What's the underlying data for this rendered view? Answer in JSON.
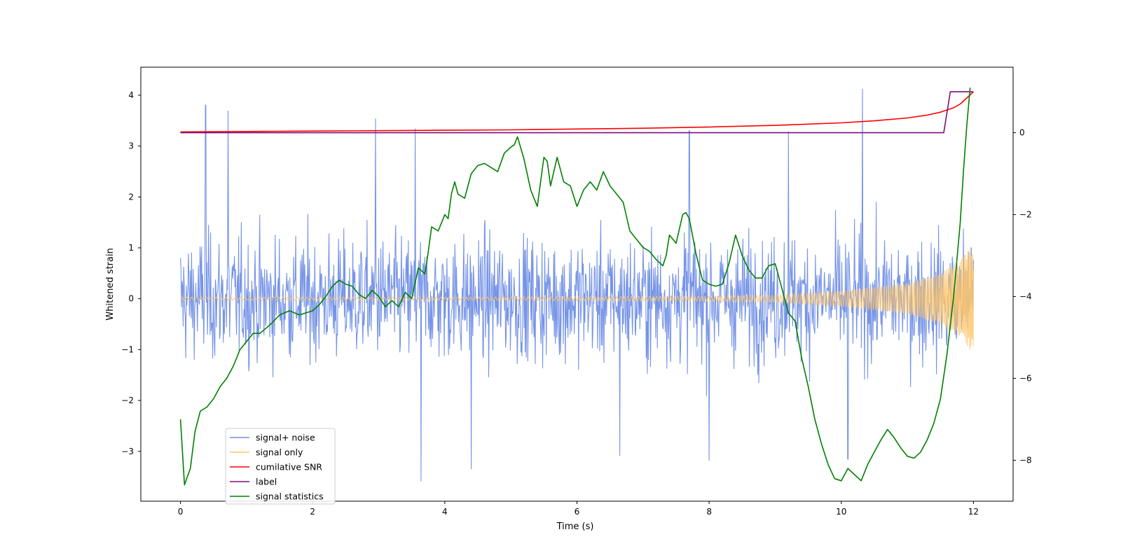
{
  "chart_data": {
    "type": "line",
    "xlabel": "Time (s)",
    "ylabel": "Whitened strain",
    "xlim": [
      -0.6,
      12.6
    ],
    "ylim": [
      -3.98,
      4.55
    ],
    "y2lim": [
      -9.0,
      1.6
    ],
    "xticks": [
      0,
      2,
      4,
      6,
      8,
      10,
      12
    ],
    "yticks": [
      -3,
      -2,
      -1,
      0,
      1,
      2,
      3,
      4
    ],
    "y2ticks": [
      -8,
      -6,
      -4,
      -2,
      0
    ],
    "xtick_labels": [
      "0",
      "2",
      "4",
      "6",
      "8",
      "10",
      "12"
    ],
    "ytick_labels": [
      "−3",
      "−2",
      "−1",
      "0",
      "1",
      "2",
      "3",
      "4"
    ],
    "y2tick_labels": [
      "−8",
      "−6",
      "−4",
      "−2",
      "0"
    ],
    "legend_position": "lower-left",
    "legend": [
      {
        "key": "noise",
        "label": "signal+ noise",
        "color": "#6f8ee6"
      },
      {
        "key": "signal",
        "label": "signal only",
        "color": "#ffc668"
      },
      {
        "key": "snr",
        "label": "cumilative SNR",
        "color": "#ff0000"
      },
      {
        "key": "label",
        "label": "label",
        "color": "#7b0f7b"
      },
      {
        "key": "stat",
        "label": "signal statistics",
        "color": "#008000"
      }
    ],
    "series": [
      {
        "name": "signal+ noise",
        "axis": "left",
        "description": "whitened strain with Gaussian-like noise, roughly within -2.5..2.8 with occasional spikes",
        "t_range": [
          0,
          12
        ],
        "samples": 1500,
        "spikes": [
          [
            0.38,
            3.8
          ],
          [
            0.72,
            3.7
          ],
          [
            2.95,
            3.55
          ],
          [
            3.55,
            3.35
          ],
          [
            3.64,
            -3.6
          ],
          [
            10.32,
            4.18
          ],
          [
            7.7,
            3.3
          ],
          [
            9.2,
            3.3
          ],
          [
            4.4,
            -3.35
          ],
          [
            6.65,
            -3.1
          ],
          [
            8.0,
            -3.18
          ],
          [
            10.1,
            -3.2
          ]
        ]
      },
      {
        "name": "signal only",
        "axis": "left",
        "description": "inspiral chirp, amplitude grows toward 12 s",
        "t_range": [
          0,
          12
        ],
        "envelope": [
          [
            0,
            0.03
          ],
          [
            4,
            0.03
          ],
          [
            6,
            0.04
          ],
          [
            8,
            0.05
          ],
          [
            9,
            0.07
          ],
          [
            10,
            0.15
          ],
          [
            11,
            0.3
          ],
          [
            11.5,
            0.5
          ],
          [
            11.8,
            0.75
          ],
          [
            12,
            1.1
          ]
        ]
      },
      {
        "name": "cumilative SNR",
        "axis": "right",
        "x": [
          0,
          1,
          2,
          3,
          4,
          5,
          6,
          7,
          8,
          9,
          10,
          10.5,
          11,
          11.3,
          11.5,
          11.7,
          11.8,
          11.9,
          12.0
        ],
        "y": [
          0.02,
          0.03,
          0.04,
          0.05,
          0.06,
          0.07,
          0.09,
          0.11,
          0.14,
          0.18,
          0.24,
          0.29,
          0.36,
          0.43,
          0.5,
          0.61,
          0.7,
          0.85,
          1.0
        ]
      },
      {
        "name": "label",
        "axis": "right",
        "x": [
          0,
          11.55,
          11.65,
          12.0
        ],
        "y": [
          0,
          0,
          1,
          1
        ]
      },
      {
        "name": "signal statistics",
        "axis": "right",
        "x": [
          0.0,
          0.06,
          0.15,
          0.22,
          0.3,
          0.4,
          0.5,
          0.6,
          0.7,
          0.8,
          0.9,
          1.0,
          1.1,
          1.2,
          1.35,
          1.5,
          1.65,
          1.8,
          2.0,
          2.1,
          2.2,
          2.3,
          2.4,
          2.5,
          2.6,
          2.7,
          2.8,
          2.9,
          3.0,
          3.1,
          3.2,
          3.3,
          3.4,
          3.5,
          3.6,
          3.7,
          3.75,
          3.8,
          3.9,
          4.0,
          4.05,
          4.1,
          4.15,
          4.2,
          4.3,
          4.4,
          4.5,
          4.6,
          4.7,
          4.8,
          4.9,
          5.0,
          5.05,
          5.1,
          5.2,
          5.3,
          5.4,
          5.5,
          5.55,
          5.6,
          5.7,
          5.8,
          5.9,
          6.0,
          6.1,
          6.2,
          6.3,
          6.4,
          6.5,
          6.6,
          6.7,
          6.8,
          6.9,
          7.0,
          7.1,
          7.2,
          7.3,
          7.35,
          7.4,
          7.5,
          7.6,
          7.65,
          7.7,
          7.8,
          7.9,
          8.0,
          8.1,
          8.2,
          8.3,
          8.4,
          8.5,
          8.6,
          8.7,
          8.8,
          8.9,
          9.0,
          9.1,
          9.2,
          9.3,
          9.4,
          9.5,
          9.6,
          9.7,
          9.8,
          9.9,
          10.0,
          10.1,
          10.2,
          10.3,
          10.4,
          10.5,
          10.6,
          10.7,
          10.8,
          10.9,
          11.0,
          11.1,
          11.2,
          11.3,
          11.4,
          11.5,
          11.6,
          11.7,
          11.8,
          11.85,
          11.9,
          11.95
        ],
        "y": [
          -7.0,
          -8.6,
          -8.2,
          -7.3,
          -6.8,
          -6.7,
          -6.5,
          -6.2,
          -6.0,
          -5.7,
          -5.3,
          -5.1,
          -4.9,
          -4.9,
          -4.7,
          -4.45,
          -4.35,
          -4.45,
          -4.35,
          -4.2,
          -4.0,
          -3.75,
          -3.6,
          -3.7,
          -3.75,
          -3.95,
          -4.05,
          -3.85,
          -4.0,
          -4.25,
          -4.1,
          -4.25,
          -3.9,
          -4.05,
          -3.3,
          -3.45,
          -2.9,
          -2.3,
          -2.4,
          -2.0,
          -2.1,
          -1.5,
          -1.2,
          -1.5,
          -1.6,
          -1.0,
          -0.8,
          -0.75,
          -0.85,
          -0.95,
          -0.5,
          -0.35,
          -0.3,
          -0.1,
          -0.65,
          -1.4,
          -1.8,
          -0.6,
          -0.7,
          -1.3,
          -0.6,
          -1.2,
          -1.3,
          -1.8,
          -1.4,
          -1.2,
          -1.4,
          -0.95,
          -1.3,
          -1.5,
          -1.7,
          -2.4,
          -2.6,
          -2.8,
          -2.9,
          -3.1,
          -3.25,
          -3.0,
          -2.5,
          -2.7,
          -2.0,
          -1.95,
          -2.1,
          -2.95,
          -3.6,
          -3.7,
          -3.75,
          -3.7,
          -3.2,
          -2.5,
          -3.0,
          -3.35,
          -3.55,
          -3.55,
          -3.25,
          -3.2,
          -3.8,
          -4.4,
          -4.6,
          -5.5,
          -6.2,
          -7.0,
          -7.6,
          -8.1,
          -8.45,
          -8.5,
          -8.2,
          -8.35,
          -8.5,
          -8.1,
          -7.8,
          -7.5,
          -7.25,
          -7.45,
          -7.7,
          -7.9,
          -7.95,
          -7.8,
          -7.5,
          -7.1,
          -6.5,
          -5.4,
          -4.0,
          -2.2,
          -0.9,
          0.2,
          1.1
        ]
      }
    ]
  }
}
